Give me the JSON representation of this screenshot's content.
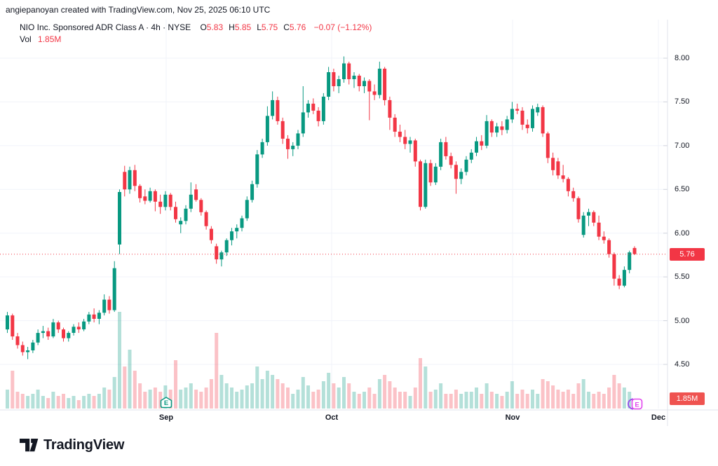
{
  "attribution": "angiepanoyan created with TradingView.com, Nov 25, 2025 06:10 UTC",
  "legend": {
    "symbol_title": "NIO Inc. Sponsored ADR Class A",
    "interval": "4h",
    "exchange": "NYSE",
    "separator": "·",
    "ohlc": [
      {
        "label": "O",
        "value": "5.83"
      },
      {
        "label": "H",
        "value": "5.85"
      },
      {
        "label": "L",
        "value": "5.75"
      },
      {
        "label": "C",
        "value": "5.76"
      }
    ],
    "change": "−0.07 (−1.12%)",
    "vol_label": "Vol",
    "vol_value": "1.85M"
  },
  "colors": {
    "up": "#089981",
    "down": "#f23645",
    "vol_up": "rgba(8,153,129,0.30)",
    "vol_down": "rgba(242,54,69,0.30)",
    "text": "#131722",
    "grid": "#f0f3fa",
    "axis_border": "#e0e3eb",
    "tick_mark": "#d1d4dc",
    "price_line": "#f23645",
    "price_label_bg": "#f23645",
    "vol_label_bg": "#ef5350",
    "earnings_reported": "#089981",
    "earnings_upcoming_box": "#e245ee",
    "earnings_upcoming_arc": "#9553e9",
    "logo": "#131722"
  },
  "price_scale": {
    "labels": [
      "8.00",
      "7.50",
      "7.00",
      "6.50",
      "6.00",
      "5.50",
      "5.00",
      "4.50"
    ],
    "values": [
      8.0,
      7.5,
      7.0,
      6.5,
      6.0,
      5.5,
      5.0,
      4.5
    ],
    "last_price": 5.76,
    "last_price_label": "5.76"
  },
  "volume_scale": {
    "last_volume_label": "1.85M"
  },
  "time_scale": {
    "labels": [
      {
        "text": "Sep",
        "x": 237
      },
      {
        "text": "Oct",
        "x": 473
      },
      {
        "text": "Nov",
        "x": 731
      },
      {
        "text": "Dec",
        "x": 939
      }
    ]
  },
  "earnings_markers": [
    {
      "type": "reported",
      "letter": "E",
      "x": 237,
      "y": 566
    },
    {
      "type": "upcoming",
      "letter": "E",
      "x": 906,
      "y": 568
    }
  ],
  "logo": {
    "text": "TradingView"
  },
  "chart_data": {
    "type": "candlestick",
    "title": "NIO Inc. Sponsored ADR Class A",
    "interval": "4h",
    "exchange": "NYSE",
    "last": {
      "open": 5.83,
      "high": 5.85,
      "low": 5.75,
      "close": 5.76,
      "change": -0.07,
      "change_pct": -1.12,
      "volume_m": 1.85
    },
    "ylim": [
      4.3,
      8.1
    ],
    "y_ticks": [
      8.0,
      7.5,
      7.0,
      6.5,
      6.0,
      5.5,
      5.0,
      4.5
    ],
    "x_months": [
      "Sep",
      "Oct",
      "Nov",
      "Dec"
    ],
    "grid": true,
    "legend_position": "top-left",
    "price_line": 5.76,
    "volume_unit": "millions (estimated from bar heights; only last bar 1.85M shown on screen)",
    "candles_format": [
      "open",
      "high",
      "low",
      "close",
      "volume_m"
    ],
    "candles": [
      [
        4.9,
        5.1,
        4.86,
        5.06,
        9
      ],
      [
        5.06,
        5.08,
        4.78,
        4.82,
        18
      ],
      [
        4.82,
        4.86,
        4.68,
        4.72,
        8
      ],
      [
        4.72,
        4.76,
        4.6,
        4.64,
        7
      ],
      [
        4.64,
        4.7,
        4.56,
        4.66,
        6
      ],
      [
        4.66,
        4.78,
        4.63,
        4.75,
        7
      ],
      [
        4.75,
        4.9,
        4.72,
        4.86,
        9
      ],
      [
        4.86,
        4.94,
        4.8,
        4.88,
        6
      ],
      [
        4.88,
        4.92,
        4.78,
        4.82,
        5
      ],
      [
        4.82,
        5.02,
        4.8,
        4.98,
        8
      ],
      [
        4.98,
        5.0,
        4.86,
        4.9,
        6
      ],
      [
        4.9,
        4.92,
        4.76,
        4.8,
        7
      ],
      [
        4.8,
        4.88,
        4.76,
        4.86,
        5
      ],
      [
        4.86,
        4.96,
        4.83,
        4.93,
        6
      ],
      [
        4.93,
        4.98,
        4.86,
        4.9,
        4
      ],
      [
        4.9,
        5.02,
        4.88,
        4.99,
        6
      ],
      [
        4.99,
        5.1,
        4.96,
        5.07,
        7
      ],
      [
        5.07,
        5.14,
        4.98,
        5.02,
        6
      ],
      [
        5.02,
        5.12,
        4.96,
        5.09,
        7
      ],
      [
        5.09,
        5.3,
        5.06,
        5.24,
        10
      ],
      [
        5.24,
        5.28,
        5.08,
        5.12,
        9
      ],
      [
        5.12,
        5.68,
        5.1,
        5.6,
        15
      ],
      [
        5.87,
        6.5,
        5.76,
        6.47,
        46
      ],
      [
        6.7,
        6.77,
        6.42,
        6.5,
        20
      ],
      [
        6.5,
        6.76,
        6.45,
        6.72,
        28
      ],
      [
        6.72,
        6.78,
        6.48,
        6.54,
        18
      ],
      [
        6.54,
        6.56,
        6.35,
        6.4,
        12
      ],
      [
        6.42,
        6.5,
        6.33,
        6.37,
        8
      ],
      [
        6.37,
        6.52,
        6.35,
        6.48,
        9
      ],
      [
        6.48,
        6.5,
        6.25,
        6.36,
        10
      ],
      [
        6.36,
        6.44,
        6.22,
        6.3,
        8
      ],
      [
        6.3,
        6.48,
        6.26,
        6.44,
        11
      ],
      [
        6.44,
        6.46,
        6.26,
        6.3,
        9
      ],
      [
        6.3,
        6.36,
        6.12,
        6.16,
        23
      ],
      [
        6.1,
        6.18,
        6.0,
        6.14,
        9
      ],
      [
        6.14,
        6.32,
        6.1,
        6.28,
        10
      ],
      [
        6.28,
        6.58,
        6.24,
        6.44,
        12
      ],
      [
        6.5,
        6.56,
        6.36,
        6.38,
        9
      ],
      [
        6.38,
        6.4,
        6.2,
        6.24,
        8
      ],
      [
        6.24,
        6.26,
        6.04,
        6.08,
        10
      ],
      [
        6.05,
        6.08,
        5.88,
        5.92,
        14
      ],
      [
        5.85,
        5.88,
        5.65,
        5.7,
        36
      ],
      [
        5.7,
        5.8,
        5.62,
        5.78,
        16
      ],
      [
        5.78,
        5.94,
        5.74,
        5.92,
        12
      ],
      [
        5.92,
        6.06,
        5.86,
        6.02,
        10
      ],
      [
        6.02,
        6.1,
        5.94,
        6.06,
        8
      ],
      [
        6.06,
        6.2,
        6.02,
        6.17,
        9
      ],
      [
        6.17,
        6.42,
        6.14,
        6.38,
        11
      ],
      [
        6.38,
        6.6,
        6.35,
        6.56,
        12
      ],
      [
        6.56,
        6.95,
        6.52,
        6.9,
        20
      ],
      [
        6.9,
        7.08,
        6.86,
        7.04,
        14
      ],
      [
        7.04,
        7.45,
        7.0,
        7.34,
        18
      ],
      [
        7.34,
        7.62,
        7.3,
        7.52,
        16
      ],
      [
        7.52,
        7.56,
        7.24,
        7.28,
        14
      ],
      [
        7.28,
        7.32,
        7.02,
        7.08,
        12
      ],
      [
        7.08,
        7.12,
        6.85,
        6.96,
        10
      ],
      [
        6.96,
        7.04,
        6.88,
        7.0,
        7
      ],
      [
        7.0,
        7.18,
        6.96,
        7.14,
        9
      ],
      [
        7.14,
        7.68,
        7.1,
        7.38,
        15
      ],
      [
        7.38,
        7.52,
        7.32,
        7.48,
        11
      ],
      [
        7.48,
        7.54,
        7.36,
        7.4,
        8
      ],
      [
        7.4,
        7.44,
        7.22,
        7.28,
        9
      ],
      [
        7.28,
        7.6,
        7.24,
        7.56,
        13
      ],
      [
        7.56,
        7.9,
        7.52,
        7.84,
        17
      ],
      [
        7.84,
        7.88,
        7.62,
        7.68,
        12
      ],
      [
        7.68,
        7.8,
        7.6,
        7.76,
        10
      ],
      [
        7.76,
        8.02,
        7.72,
        7.94,
        15
      ],
      [
        7.94,
        7.96,
        7.7,
        7.76,
        12
      ],
      [
        7.76,
        7.84,
        7.66,
        7.8,
        8
      ],
      [
        7.8,
        7.82,
        7.62,
        7.68,
        7
      ],
      [
        7.68,
        7.78,
        7.6,
        7.74,
        8
      ],
      [
        7.74,
        7.76,
        7.29,
        7.62,
        10
      ],
      [
        7.62,
        7.7,
        7.52,
        7.58,
        7
      ],
      [
        7.58,
        7.96,
        7.54,
        7.88,
        14
      ],
      [
        7.88,
        7.9,
        7.46,
        7.52,
        16
      ],
      [
        7.52,
        7.56,
        7.18,
        7.32,
        13
      ],
      [
        7.32,
        7.36,
        7.1,
        7.16,
        10
      ],
      [
        7.16,
        7.24,
        7.04,
        7.1,
        8
      ],
      [
        7.1,
        7.18,
        6.96,
        7.02,
        8
      ],
      [
        7.02,
        7.1,
        6.92,
        7.06,
        6
      ],
      [
        7.06,
        7.08,
        6.76,
        6.82,
        10
      ],
      [
        6.82,
        6.84,
        6.26,
        6.3,
        24
      ],
      [
        6.3,
        6.84,
        6.28,
        6.8,
        20
      ],
      [
        6.8,
        6.84,
        6.54,
        6.58,
        8
      ],
      [
        6.58,
        6.8,
        6.55,
        6.76,
        9
      ],
      [
        6.76,
        7.08,
        6.72,
        7.04,
        12
      ],
      [
        7.04,
        7.1,
        6.84,
        6.88,
        7
      ],
      [
        6.88,
        6.92,
        6.74,
        6.78,
        7
      ],
      [
        6.78,
        6.82,
        6.45,
        6.62,
        9
      ],
      [
        6.62,
        6.74,
        6.56,
        6.7,
        7
      ],
      [
        6.7,
        6.88,
        6.66,
        6.84,
        8
      ],
      [
        6.84,
        6.96,
        6.8,
        6.92,
        8
      ],
      [
        6.92,
        7.1,
        6.88,
        7.05,
        10
      ],
      [
        7.05,
        7.12,
        6.95,
        7.0,
        7
      ],
      [
        7.0,
        7.35,
        6.97,
        7.28,
        12
      ],
      [
        7.28,
        7.3,
        7.1,
        7.15,
        8
      ],
      [
        7.15,
        7.26,
        7.1,
        7.22,
        7
      ],
      [
        7.22,
        7.28,
        7.12,
        7.18,
        6
      ],
      [
        7.18,
        7.34,
        7.14,
        7.3,
        8
      ],
      [
        7.3,
        7.5,
        7.26,
        7.42,
        13
      ],
      [
        7.42,
        7.48,
        7.36,
        7.4,
        7
      ],
      [
        7.4,
        7.44,
        7.18,
        7.24,
        9
      ],
      [
        7.24,
        7.3,
        7.14,
        7.2,
        7
      ],
      [
        7.2,
        7.46,
        7.16,
        7.42,
        9
      ],
      [
        7.38,
        7.48,
        7.34,
        7.44,
        7
      ],
      [
        7.44,
        7.46,
        7.1,
        7.14,
        14
      ],
      [
        7.14,
        7.16,
        6.8,
        6.86,
        13
      ],
      [
        6.86,
        6.92,
        6.66,
        6.72,
        11
      ],
      [
        6.82,
        6.86,
        6.62,
        6.66,
        9
      ],
      [
        6.66,
        6.78,
        6.58,
        6.62,
        8
      ],
      [
        6.62,
        6.64,
        6.42,
        6.48,
        9
      ],
      [
        6.48,
        6.52,
        6.36,
        6.4,
        7
      ],
      [
        6.4,
        6.42,
        6.12,
        6.16,
        12
      ],
      [
        5.98,
        6.24,
        5.95,
        6.2,
        14
      ],
      [
        6.2,
        6.28,
        6.08,
        6.24,
        8
      ],
      [
        6.24,
        6.26,
        6.08,
        6.12,
        7
      ],
      [
        6.12,
        6.2,
        5.92,
        5.96,
        8
      ],
      [
        5.96,
        6.02,
        5.88,
        5.92,
        7
      ],
      [
        5.92,
        5.94,
        5.72,
        5.76,
        10
      ],
      [
        5.76,
        5.78,
        5.4,
        5.48,
        16
      ],
      [
        5.48,
        5.52,
        5.36,
        5.4,
        12
      ],
      [
        5.4,
        5.62,
        5.38,
        5.58,
        10
      ],
      [
        5.58,
        5.8,
        5.54,
        5.78,
        8
      ],
      [
        5.83,
        5.85,
        5.75,
        5.76,
        1.85
      ]
    ]
  }
}
